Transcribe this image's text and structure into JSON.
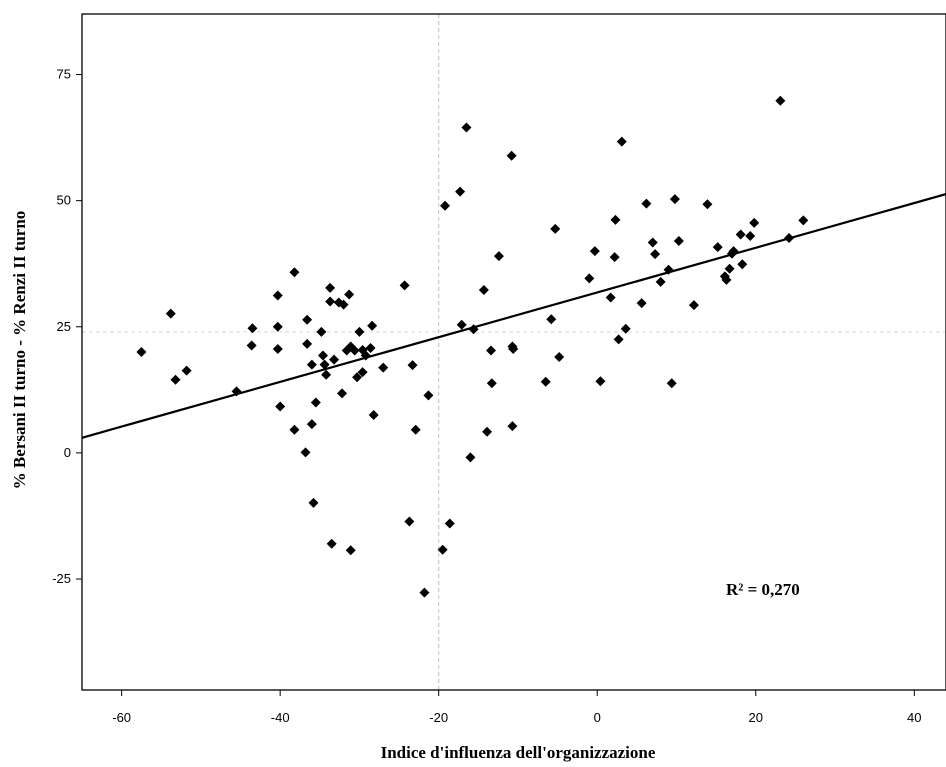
{
  "chart_data": {
    "type": "scatter",
    "xlabel": "Indice d'influenza dell'organizzazione",
    "ylabel": "% Bersani II turno - % Renzi II turno",
    "xlim": [
      -65,
      44
    ],
    "ylim": [
      -47,
      87
    ],
    "x_ticks": [
      -60,
      -40,
      -20,
      0,
      20,
      40
    ],
    "y_ticks": [
      -25,
      0,
      25,
      50,
      75
    ],
    "x_tick_labels": [
      "-60",
      "-40",
      "-20",
      "0",
      "20",
      "40"
    ],
    "y_tick_labels": [
      "-25",
      "0",
      "25",
      "50",
      "75"
    ],
    "reference_lines": {
      "x": -20,
      "y": 24
    },
    "annotation": "R² = 0,270",
    "fit_line": {
      "x": [
        -65,
        44
      ],
      "y": [
        3,
        51.3
      ]
    },
    "points": [
      [
        -57.5,
        20
      ],
      [
        -53.8,
        27.6
      ],
      [
        -53.2,
        14.5
      ],
      [
        -51.8,
        16.3
      ],
      [
        -45.5,
        12.2
      ],
      [
        -43.5,
        24.7
      ],
      [
        -43.6,
        21.3
      ],
      [
        -40.3,
        31.2
      ],
      [
        -40.3,
        25
      ],
      [
        -40.3,
        20.6
      ],
      [
        -40,
        9.2
      ],
      [
        -38.2,
        35.8
      ],
      [
        -38.2,
        4.6
      ],
      [
        -36.6,
        26.4
      ],
      [
        -36.6,
        21.6
      ],
      [
        -36.8,
        0.1
      ],
      [
        -36,
        17.5
      ],
      [
        -36,
        5.7
      ],
      [
        -35.8,
        -9.9
      ],
      [
        -35.5,
        10
      ],
      [
        -34.8,
        24
      ],
      [
        -34.6,
        19.3
      ],
      [
        -34.4,
        17.5
      ],
      [
        -34.2,
        15.5
      ],
      [
        -33.7,
        30
      ],
      [
        -33.7,
        32.7
      ],
      [
        -33.2,
        18.5
      ],
      [
        -33.5,
        -18
      ],
      [
        -32.6,
        29.8
      ],
      [
        -32.2,
        11.8
      ],
      [
        -32,
        29.4
      ],
      [
        -31.6,
        20.3
      ],
      [
        -31.3,
        31.4
      ],
      [
        -31.1,
        21.1
      ],
      [
        -31.1,
        -19.3
      ],
      [
        -30.6,
        20.3
      ],
      [
        -30.3,
        15
      ],
      [
        -30,
        24
      ],
      [
        -29.6,
        20.4
      ],
      [
        -29.6,
        16
      ],
      [
        -29.2,
        19.3
      ],
      [
        -28.6,
        20.8
      ],
      [
        -28.4,
        25.2
      ],
      [
        -28.2,
        7.5
      ],
      [
        -27,
        16.9
      ],
      [
        -24.3,
        33.2
      ],
      [
        -23.7,
        -13.6
      ],
      [
        -23.3,
        17.4
      ],
      [
        -22.9,
        4.6
      ],
      [
        -21.8,
        -27.7
      ],
      [
        -21.3,
        11.4
      ],
      [
        -19.5,
        -19.2
      ],
      [
        -19.2,
        49
      ],
      [
        -18.6,
        -14
      ],
      [
        -17.3,
        51.8
      ],
      [
        -17.1,
        25.4
      ],
      [
        -16.5,
        64.5
      ],
      [
        -16,
        -0.9
      ],
      [
        -15.6,
        24.5
      ],
      [
        -14.3,
        32.3
      ],
      [
        -13.9,
        4.2
      ],
      [
        -13.4,
        20.3
      ],
      [
        -13.3,
        13.8
      ],
      [
        -12.4,
        39
      ],
      [
        -10.8,
        58.9
      ],
      [
        -10.7,
        21.1
      ],
      [
        -10.6,
        20.6
      ],
      [
        -10.7,
        5.3
      ],
      [
        -6.5,
        14.1
      ],
      [
        -5.8,
        26.5
      ],
      [
        -5.3,
        44.4
      ],
      [
        -4.8,
        19
      ],
      [
        -1,
        34.6
      ],
      [
        -0.3,
        40
      ],
      [
        0.4,
        14.2
      ],
      [
        1.7,
        30.8
      ],
      [
        2.2,
        38.8
      ],
      [
        2.3,
        46.2
      ],
      [
        2.7,
        22.5
      ],
      [
        3.1,
        61.7
      ],
      [
        3.6,
        24.6
      ],
      [
        5.6,
        29.7
      ],
      [
        6.2,
        49.4
      ],
      [
        7,
        41.7
      ],
      [
        7.3,
        39.4
      ],
      [
        8,
        33.9
      ],
      [
        9,
        36.3
      ],
      [
        9.4,
        13.8
      ],
      [
        9.8,
        50.3
      ],
      [
        10.3,
        42
      ],
      [
        12.2,
        29.3
      ],
      [
        13.9,
        49.3
      ],
      [
        15.2,
        40.8
      ],
      [
        16.1,
        35
      ],
      [
        16.3,
        34.3
      ],
      [
        16.7,
        36.5
      ],
      [
        17,
        39.5
      ],
      [
        17.2,
        40
      ],
      [
        18.1,
        43.3
      ],
      [
        18.3,
        37.4
      ],
      [
        19.3,
        43
      ],
      [
        19.8,
        45.6
      ],
      [
        23.1,
        69.8
      ],
      [
        24.2,
        42.6
      ],
      [
        26,
        46.1
      ]
    ]
  }
}
